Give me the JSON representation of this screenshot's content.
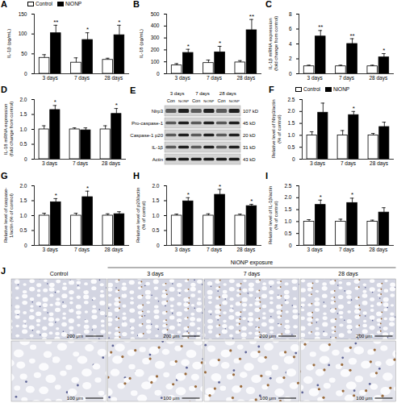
{
  "chart_data": [
    {
      "type": "bar",
      "title": "A",
      "ylabel": "IL-1β (pg/mL)",
      "categories": [
        "3 days",
        "7 days",
        "28 days"
      ],
      "series": [
        {
          "name": "Control",
          "color": "#ffffff",
          "values": [
            40,
            28,
            35
          ],
          "error": [
            8,
            12,
            4
          ]
        },
        {
          "name": "NiONP",
          "color": "#000000",
          "values": [
            102,
            85,
            97
          ],
          "error": [
            20,
            18,
            25
          ],
          "significance": [
            "**",
            "*",
            "*"
          ]
        }
      ],
      "ylim": [
        0,
        150
      ],
      "yticks": [
        0,
        50,
        100,
        150
      ],
      "legend": "top-left"
    },
    {
      "type": "bar",
      "title": "B",
      "ylabel": "IL-18 (pg/mL)",
      "categories": [
        "3 days",
        "7 days",
        "28 days"
      ],
      "series": [
        {
          "name": "Control",
          "color": "#ffffff",
          "values": [
            70,
            90,
            95
          ],
          "error": [
            15,
            25,
            15
          ]
        },
        {
          "name": "NiONP",
          "color": "#000000",
          "values": [
            175,
            180,
            365
          ],
          "error": [
            30,
            50,
            90
          ],
          "significance": [
            "*",
            "*",
            "**"
          ]
        }
      ],
      "ylim": [
        0,
        500
      ],
      "yticks": [
        0,
        100,
        200,
        300,
        400,
        500
      ]
    },
    {
      "type": "bar",
      "title": "C",
      "ylabel": "IL-1β mRNA expression (fold change from control)",
      "categories": [
        "3 days",
        "7 days",
        "28 days"
      ],
      "series": [
        {
          "name": "Control",
          "color": "#ffffff",
          "values": [
            1,
            1,
            1
          ],
          "error": [
            0.15,
            0.15,
            0.15
          ]
        },
        {
          "name": "NiONP",
          "color": "#000000",
          "values": [
            5.0,
            4.0,
            2.2
          ],
          "error": [
            0.8,
            0.7,
            0.5
          ],
          "significance": [
            "**",
            "**",
            "*"
          ]
        }
      ],
      "ylim": [
        0,
        8
      ],
      "yticks": [
        0,
        2,
        4,
        6,
        8
      ]
    },
    {
      "type": "bar",
      "title": "D",
      "ylabel": "IL-18 mRNA expression (fold change from control)",
      "categories": [
        "3 days",
        "7 days",
        "28 days"
      ],
      "series": [
        {
          "name": "Control",
          "color": "#ffffff",
          "values": [
            1.0,
            1.0,
            1.0
          ],
          "error": [
            0.12,
            0.05,
            0.12
          ]
        },
        {
          "name": "NiONP",
          "color": "#000000",
          "values": [
            1.65,
            0.97,
            1.52
          ],
          "error": [
            0.15,
            0.08,
            0.18
          ],
          "significance": [
            "*",
            null,
            "*"
          ]
        }
      ],
      "ylim": [
        0,
        2
      ],
      "yticks": [
        0,
        0.5,
        {
          "value": 1,
          "label": "1.0"
        },
        1.5,
        {
          "value": 2,
          "label": "2.0"
        }
      ]
    },
    {
      "type": "bar",
      "title": "F",
      "ylabel": "Relative level of Nlrp3/actin (% of control)",
      "categories": [
        "3 days",
        "7 days",
        "28 days"
      ],
      "series": [
        {
          "name": "Control",
          "color": "#ffffff",
          "values": [
            1,
            1,
            1
          ],
          "error": [
            0.15,
            0.2,
            0.08
          ]
        },
        {
          "name": "NiONP",
          "color": "#000000",
          "values": [
            1.95,
            1.85,
            1.35
          ],
          "error": [
            0.4,
            0.15,
            0.2
          ],
          "significance": [
            null,
            "*",
            null
          ]
        }
      ],
      "ylim": [
        0,
        2.5
      ],
      "yticks": [
        0,
        0.5,
        {
          "value": 1,
          "label": "1.0"
        },
        1.5,
        {
          "value": 2,
          "label": "2.0"
        },
        2.5
      ],
      "legend": "top-left"
    },
    {
      "type": "bar",
      "title": "G",
      "ylabel": "Relative level of caspase-1/actin (% of control)",
      "categories": [
        "3 days",
        "7 days",
        "28 days"
      ],
      "series": [
        {
          "name": "Control",
          "color": "#ffffff",
          "values": [
            1,
            1,
            1
          ],
          "error": [
            0.08,
            0.08,
            0.06
          ]
        },
        {
          "name": "NiONP",
          "color": "#000000",
          "values": [
            1.45,
            1.62,
            1.05
          ],
          "error": [
            0.12,
            0.2,
            0.08
          ],
          "significance": [
            "*",
            "*",
            null
          ]
        }
      ],
      "ylim": [
        0,
        2
      ],
      "yticks": [
        0,
        0.5,
        {
          "value": 1,
          "label": "1.0"
        },
        1.5,
        {
          "value": 2,
          "label": "2.0"
        }
      ]
    },
    {
      "type": "bar",
      "title": "H",
      "ylabel": "Relative level of p20/actin (% of control)",
      "categories": [
        "3 days",
        "7 days",
        "28 days"
      ],
      "series": [
        {
          "name": "Control",
          "color": "#ffffff",
          "values": [
            1,
            1,
            1
          ],
          "error": [
            0.05,
            0.06,
            0.05
          ]
        },
        {
          "name": "NiONP",
          "color": "#000000",
          "values": [
            1.48,
            1.7,
            1.32
          ],
          "error": [
            0.12,
            0.18,
            0.06
          ],
          "significance": [
            "*",
            "*",
            "*"
          ]
        }
      ],
      "ylim": [
        0,
        2
      ],
      "yticks": [
        0,
        0.5,
        {
          "value": 1,
          "label": "1.0"
        },
        1.5,
        {
          "value": 2,
          "label": "2.0"
        }
      ]
    },
    {
      "type": "bar",
      "title": "I",
      "ylabel": "Relative level of IL-1β/actin (% of control)",
      "categories": [
        "3 days",
        "7 days",
        "28 days"
      ],
      "series": [
        {
          "name": "Control",
          "color": "#ffffff",
          "values": [
            1,
            1,
            1
          ],
          "error": [
            0.08,
            0.1,
            0.06
          ]
        },
        {
          "name": "NiONP",
          "color": "#000000",
          "values": [
            1.7,
            1.78,
            1.38
          ],
          "error": [
            0.2,
            0.2,
            0.2
          ],
          "significance": [
            "*",
            "*",
            null
          ]
        }
      ],
      "ylim": [
        0,
        2.5
      ],
      "yticks": [
        0,
        0.5,
        {
          "value": 1,
          "label": "1.0"
        },
        1.5,
        {
          "value": 2,
          "label": "2.0"
        },
        2.5
      ]
    }
  ],
  "blot": {
    "title": "E",
    "groups": [
      "3 days",
      "7 days",
      "28 days"
    ],
    "lanes": [
      "Con",
      "NiONP"
    ],
    "bands": [
      {
        "label": "Nlrp3",
        "size": "107 kD"
      },
      {
        "label": "Pro-caspase-1",
        "size": "45 kD"
      },
      {
        "label": "Caspase-1 p20",
        "size": "20 kD"
      },
      {
        "label": "IL-1β",
        "size": "31 kD"
      },
      {
        "label": "Actin",
        "size": "43 kD"
      }
    ]
  },
  "histology": {
    "title": "J",
    "group_label": "NiONP exposure",
    "columns": [
      "Control",
      "3 days",
      "7 days",
      "28 days"
    ],
    "rows": [
      {
        "scale_bar": "200 μm"
      },
      {
        "scale_bar": "100 μm"
      }
    ]
  }
}
